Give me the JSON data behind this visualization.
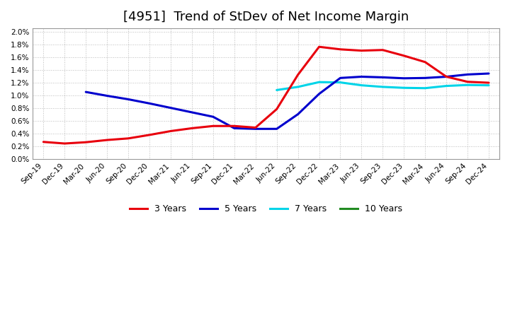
{
  "title": "[4951]  Trend of StDev of Net Income Margin",
  "title_fontsize": 13,
  "x_labels": [
    "Sep-19",
    "Dec-19",
    "Mar-20",
    "Jun-20",
    "Sep-20",
    "Dec-20",
    "Mar-21",
    "Jun-21",
    "Sep-21",
    "Dec-21",
    "Mar-22",
    "Jun-22",
    "Sep-22",
    "Dec-22",
    "Mar-23",
    "Jun-23",
    "Sep-23",
    "Dec-23",
    "Mar-24",
    "Jun-24",
    "Sep-24",
    "Dec-24"
  ],
  "y_ticks": [
    0.0,
    0.002,
    0.004,
    0.006,
    0.008,
    0.01,
    0.012,
    0.014,
    0.016,
    0.018,
    0.02
  ],
  "ylim": [
    0.0,
    0.0205
  ],
  "series_3y": {
    "color": "#e8000d",
    "linewidth": 2.2,
    "data": [
      0.00265,
      0.0024,
      0.0026,
      0.00295,
      0.0032,
      0.00375,
      0.00435,
      0.0048,
      0.00515,
      0.00515,
      0.0049,
      0.0078,
      0.0132,
      0.0176,
      0.0172,
      0.017,
      0.0171,
      0.0162,
      0.0152,
      0.0129,
      0.0121,
      0.01195
    ]
  },
  "series_5y": {
    "color": "#0000cd",
    "linewidth": 2.2,
    "data": [
      null,
      null,
      0.0105,
      0.0099,
      0.00935,
      0.0087,
      0.008,
      0.0073,
      0.0066,
      0.0048,
      0.0047,
      0.0047,
      0.007,
      0.0102,
      0.0127,
      0.0129,
      0.0128,
      0.01265,
      0.0127,
      0.0129,
      0.01325,
      0.0134
    ]
  },
  "series_7y": {
    "color": "#00d4e8",
    "linewidth": 2.2,
    "data": [
      null,
      null,
      null,
      null,
      null,
      null,
      null,
      null,
      null,
      null,
      null,
      0.0108,
      0.0113,
      0.01205,
      0.012,
      0.01155,
      0.0113,
      0.01115,
      0.0111,
      0.01145,
      0.0116,
      0.01155
    ]
  },
  "series_10y": {
    "color": "#228b22",
    "linewidth": 2.2,
    "data": [
      null,
      null,
      null,
      null,
      null,
      null,
      null,
      null,
      null,
      null,
      null,
      null,
      null,
      null,
      null,
      null,
      null,
      null,
      null,
      null,
      null,
      null
    ]
  },
  "grid_color": "#aaaaaa",
  "bg_color": "#ffffff",
  "plot_bg_color": "#ffffff",
  "legend_items": [
    "3 Years",
    "5 Years",
    "7 Years",
    "10 Years"
  ],
  "legend_colors": [
    "#e8000d",
    "#0000cd",
    "#00d4e8",
    "#228b22"
  ]
}
